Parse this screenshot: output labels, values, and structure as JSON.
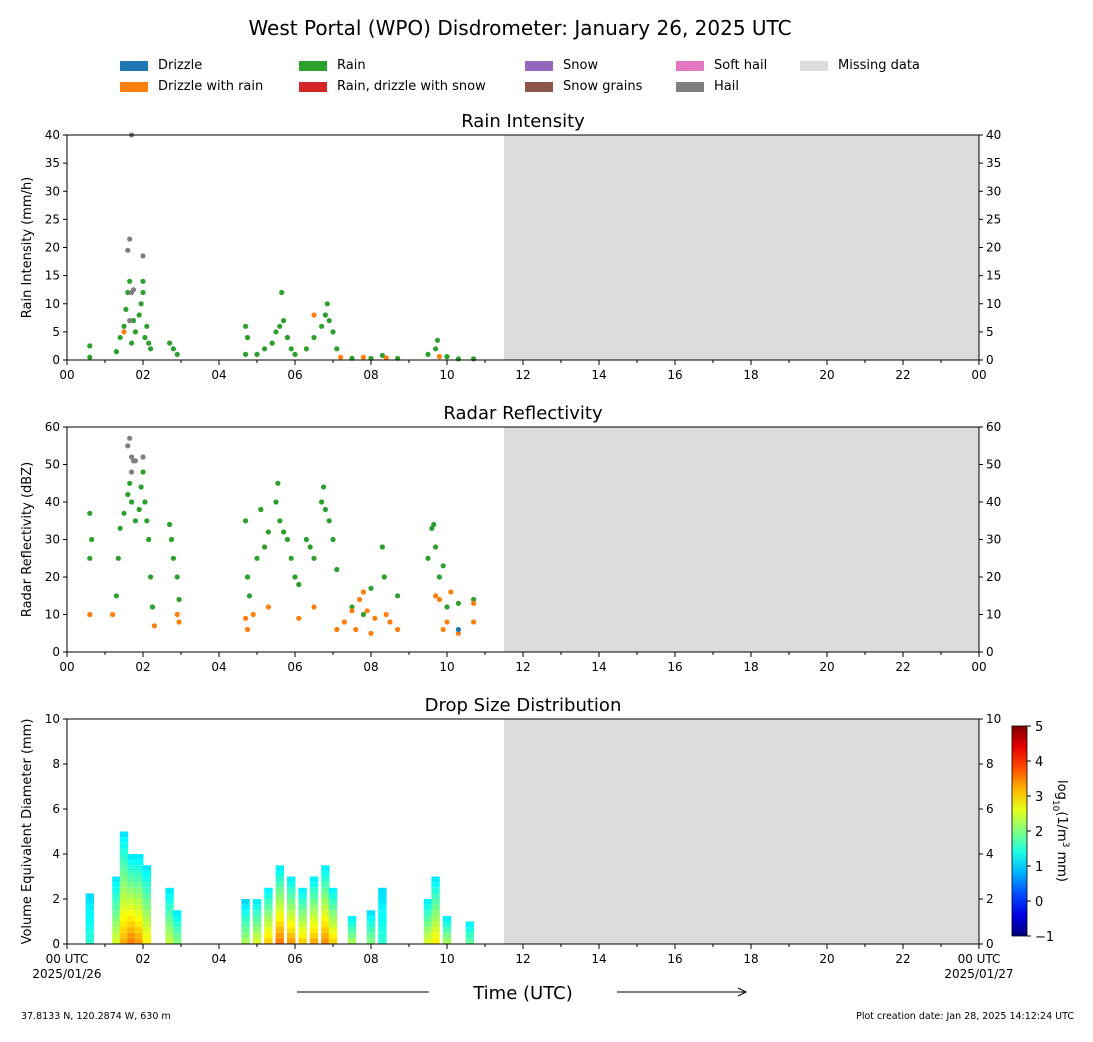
{
  "figure": {
    "title": "West Portal (WPO) Disdrometer: January 26, 2025 UTC",
    "footer_left": "37.8133 N, 120.2874 W, 630 m",
    "footer_right": "Plot creation date: Jan 28, 2025 14:12:24 UTC",
    "xlabel": "Time (UTC)",
    "start_label": [
      "00 UTC",
      "2025/01/26"
    ],
    "end_label": [
      "00 UTC",
      "2025/01/27"
    ]
  },
  "legend": [
    {
      "label": "Drizzle",
      "color": "#1f77b4"
    },
    {
      "label": "Drizzle with rain",
      "color": "#ff7f0e"
    },
    {
      "label": "Rain",
      "color": "#2ca02c"
    },
    {
      "label": "Rain, drizzle with snow",
      "color": "#d62728"
    },
    {
      "label": "Snow",
      "color": "#9467bd"
    },
    {
      "label": "Snow grains",
      "color": "#8c564b"
    },
    {
      "label": "Soft hail",
      "color": "#e377c2"
    },
    {
      "label": "Hail",
      "color": "#7f7f7f"
    },
    {
      "label": "Missing data",
      "color": "#dcdcdc"
    }
  ],
  "colorbar": {
    "label": "log10(1/m3 mm)",
    "ticks": [
      "5",
      "4",
      "3",
      "2",
      "1",
      "0",
      "−1"
    ],
    "range": [
      -1,
      5
    ]
  },
  "chart_data": [
    {
      "type": "scatter",
      "title": "Rain Intensity",
      "ylabel": "Rain Intensity (mm/h)",
      "xlim": [
        0,
        24
      ],
      "ylim": [
        0,
        40
      ],
      "xticks": [
        "00",
        "02",
        "04",
        "06",
        "08",
        "10",
        "12",
        "14",
        "16",
        "18",
        "20",
        "22",
        "00"
      ],
      "yticks": [
        0,
        5,
        10,
        15,
        20,
        25,
        30,
        35,
        40
      ],
      "missing_data_from_hour": 11.5,
      "series": [
        {
          "name": "Rain",
          "points": [
            [
              0.6,
              0.5
            ],
            [
              0.6,
              2.5
            ],
            [
              1.3,
              1.5
            ],
            [
              1.4,
              4
            ],
            [
              1.5,
              6
            ],
            [
              1.55,
              9
            ],
            [
              1.6,
              12
            ],
            [
              1.65,
              14
            ],
            [
              1.7,
              3
            ],
            [
              1.75,
              7
            ],
            [
              1.8,
              5
            ],
            [
              1.9,
              8
            ],
            [
              1.95,
              10
            ],
            [
              2.0,
              14
            ],
            [
              2.0,
              12
            ],
            [
              2.05,
              4
            ],
            [
              2.1,
              6
            ],
            [
              2.15,
              3
            ],
            [
              2.2,
              2
            ],
            [
              2.7,
              3
            ],
            [
              2.8,
              2
            ],
            [
              2.9,
              1
            ],
            [
              4.7,
              1
            ],
            [
              4.7,
              6
            ],
            [
              4.75,
              4
            ],
            [
              5.0,
              1
            ],
            [
              5.2,
              2
            ],
            [
              5.4,
              3
            ],
            [
              5.5,
              5
            ],
            [
              5.6,
              6
            ],
            [
              5.65,
              12
            ],
            [
              5.7,
              7
            ],
            [
              5.8,
              4
            ],
            [
              5.9,
              2
            ],
            [
              6.0,
              1
            ],
            [
              6.3,
              2
            ],
            [
              6.5,
              4
            ],
            [
              6.7,
              6
            ],
            [
              6.8,
              8
            ],
            [
              6.85,
              10
            ],
            [
              6.9,
              7
            ],
            [
              7.0,
              5
            ],
            [
              7.1,
              2
            ],
            [
              7.5,
              0.3
            ],
            [
              8.0,
              0.3
            ],
            [
              8.3,
              0.8
            ],
            [
              8.7,
              0.3
            ],
            [
              9.5,
              1
            ],
            [
              9.7,
              2
            ],
            [
              9.75,
              3.5
            ],
            [
              10.0,
              0.6
            ],
            [
              10.3,
              0.2
            ],
            [
              10.7,
              0.2
            ]
          ]
        },
        {
          "name": "Drizzle with rain",
          "points": [
            [
              1.5,
              5
            ],
            [
              6.5,
              8
            ],
            [
              7.2,
              0.5
            ],
            [
              7.8,
              0.5
            ],
            [
              8.4,
              0.4
            ],
            [
              9.8,
              0.6
            ]
          ]
        },
        {
          "name": "Hail",
          "points": [
            [
              1.6,
              19.5
            ],
            [
              1.65,
              21.5
            ],
            [
              1.7,
              12
            ],
            [
              1.75,
              12.5
            ],
            [
              2.0,
              18.5
            ],
            [
              1.65,
              7
            ],
            [
              1.7,
              40
            ]
          ]
        }
      ]
    },
    {
      "type": "scatter",
      "title": "Radar Reflectivity",
      "ylabel": "Radar Reflectivity (dBZ)",
      "xlim": [
        0,
        24
      ],
      "ylim": [
        0,
        60
      ],
      "xticks": [
        "00",
        "02",
        "04",
        "06",
        "08",
        "10",
        "12",
        "14",
        "16",
        "18",
        "20",
        "22",
        "00"
      ],
      "yticks": [
        0,
        10,
        20,
        30,
        40,
        50,
        60
      ],
      "missing_data_from_hour": 11.5,
      "series": [
        {
          "name": "Rain",
          "points": [
            [
              0.6,
              37
            ],
            [
              0.6,
              25
            ],
            [
              0.65,
              30
            ],
            [
              1.3,
              15
            ],
            [
              1.35,
              25
            ],
            [
              1.4,
              33
            ],
            [
              1.5,
              37
            ],
            [
              1.6,
              42
            ],
            [
              1.65,
              45
            ],
            [
              1.7,
              40
            ],
            [
              1.8,
              35
            ],
            [
              1.9,
              38
            ],
            [
              1.95,
              44
            ],
            [
              2.0,
              48
            ],
            [
              2.05,
              40
            ],
            [
              2.1,
              35
            ],
            [
              2.15,
              30
            ],
            [
              2.2,
              20
            ],
            [
              2.25,
              12
            ],
            [
              2.7,
              34
            ],
            [
              2.75,
              30
            ],
            [
              2.8,
              25
            ],
            [
              2.9,
              20
            ],
            [
              2.95,
              14
            ],
            [
              4.7,
              35
            ],
            [
              4.75,
              20
            ],
            [
              4.8,
              15
            ],
            [
              5.0,
              25
            ],
            [
              5.1,
              38
            ],
            [
              5.2,
              28
            ],
            [
              5.3,
              32
            ],
            [
              5.5,
              40
            ],
            [
              5.55,
              45
            ],
            [
              5.6,
              35
            ],
            [
              5.7,
              32
            ],
            [
              5.8,
              30
            ],
            [
              5.9,
              25
            ],
            [
              6.0,
              20
            ],
            [
              6.1,
              18
            ],
            [
              6.3,
              30
            ],
            [
              6.4,
              28
            ],
            [
              6.5,
              25
            ],
            [
              6.7,
              40
            ],
            [
              6.75,
              44
            ],
            [
              6.8,
              38
            ],
            [
              6.9,
              35
            ],
            [
              7.0,
              30
            ],
            [
              7.1,
              22
            ],
            [
              7.5,
              12
            ],
            [
              7.8,
              10
            ],
            [
              8.0,
              17
            ],
            [
              8.3,
              28
            ],
            [
              8.35,
              20
            ],
            [
              8.7,
              15
            ],
            [
              9.5,
              25
            ],
            [
              9.6,
              33
            ],
            [
              9.65,
              34
            ],
            [
              9.7,
              28
            ],
            [
              9.8,
              20
            ],
            [
              9.9,
              23
            ],
            [
              10.0,
              12
            ],
            [
              10.3,
              13
            ],
            [
              10.7,
              14
            ]
          ]
        },
        {
          "name": "Drizzle with rain",
          "points": [
            [
              0.6,
              10
            ],
            [
              1.2,
              10
            ],
            [
              2.3,
              7
            ],
            [
              2.9,
              10
            ],
            [
              2.95,
              8
            ],
            [
              4.7,
              9
            ],
            [
              4.75,
              6
            ],
            [
              4.9,
              10
            ],
            [
              5.3,
              12
            ],
            [
              6.1,
              9
            ],
            [
              6.5,
              12
            ],
            [
              7.1,
              6
            ],
            [
              7.3,
              8
            ],
            [
              7.5,
              11
            ],
            [
              7.6,
              6
            ],
            [
              7.7,
              14
            ],
            [
              7.8,
              16
            ],
            [
              7.9,
              11
            ],
            [
              8.0,
              5
            ],
            [
              8.1,
              9
            ],
            [
              8.4,
              10
            ],
            [
              8.5,
              8
            ],
            [
              8.7,
              6
            ],
            [
              9.7,
              15
            ],
            [
              9.8,
              14
            ],
            [
              9.9,
              6
            ],
            [
              10.0,
              8
            ],
            [
              10.1,
              16
            ],
            [
              10.3,
              5
            ],
            [
              10.7,
              8
            ],
            [
              10.7,
              13
            ]
          ]
        },
        {
          "name": "Drizzle",
          "points": [
            [
              10.3,
              6
            ]
          ]
        },
        {
          "name": "Hail",
          "points": [
            [
              1.6,
              55
            ],
            [
              1.65,
              57
            ],
            [
              1.7,
              52
            ],
            [
              1.75,
              51
            ],
            [
              1.8,
              51
            ],
            [
              2.0,
              52
            ],
            [
              1.7,
              48
            ]
          ]
        }
      ]
    },
    {
      "type": "heatmap",
      "title": "Drop Size Distribution",
      "ylabel": "Volume Equivalent Diameter (mm)",
      "xlim": [
        0,
        24
      ],
      "ylim": [
        0,
        10
      ],
      "xticks": [
        "00",
        "02",
        "04",
        "06",
        "08",
        "10",
        "12",
        "14",
        "16",
        "18",
        "20",
        "22",
        "00"
      ],
      "yticks": [
        0,
        2,
        4,
        6,
        8,
        10
      ],
      "missing_data_from_hour": 11.5,
      "segments": [
        [
          0.6,
          0.7
        ],
        [
          1.25,
          2.3
        ],
        [
          2.6,
          3.0
        ],
        [
          4.65,
          7.3
        ],
        [
          7.3,
          8.4
        ],
        [
          9.4,
          10.8
        ]
      ],
      "columns": [
        {
          "t": 0.6,
          "top": 2.2,
          "peak": 1.5
        },
        {
          "t": 1.3,
          "top": 3.0,
          "peak": 2.5
        },
        {
          "t": 1.5,
          "top": 5.0,
          "peak": 3.2
        },
        {
          "t": 1.7,
          "top": 4.0,
          "peak": 3.5
        },
        {
          "t": 1.9,
          "top": 4.0,
          "peak": 3.3
        },
        {
          "t": 2.1,
          "top": 3.5,
          "peak": 2.8
        },
        {
          "t": 2.7,
          "top": 2.5,
          "peak": 2.4
        },
        {
          "t": 2.9,
          "top": 1.5,
          "peak": 2.0
        },
        {
          "t": 4.7,
          "top": 1.8,
          "peak": 2.2
        },
        {
          "t": 5.0,
          "top": 2.0,
          "peak": 2.5
        },
        {
          "t": 5.3,
          "top": 2.5,
          "peak": 3.0
        },
        {
          "t": 5.6,
          "top": 3.5,
          "peak": 3.5
        },
        {
          "t": 5.9,
          "top": 3.0,
          "peak": 3.3
        },
        {
          "t": 6.2,
          "top": 2.5,
          "peak": 3.0
        },
        {
          "t": 6.5,
          "top": 3.0,
          "peak": 3.2
        },
        {
          "t": 6.8,
          "top": 3.5,
          "peak": 3.4
        },
        {
          "t": 7.0,
          "top": 2.5,
          "peak": 3.0
        },
        {
          "t": 7.5,
          "top": 1.2,
          "peak": 2.2
        },
        {
          "t": 8.0,
          "top": 1.4,
          "peak": 2.0
        },
        {
          "t": 8.3,
          "top": 2.5,
          "peak": 1.5
        },
        {
          "t": 9.5,
          "top": 2.0,
          "peak": 2.5
        },
        {
          "t": 9.7,
          "top": 3.0,
          "peak": 2.8
        },
        {
          "t": 10.0,
          "top": 1.2,
          "peak": 2.2
        },
        {
          "t": 10.6,
          "top": 1.0,
          "peak": 1.8
        }
      ]
    }
  ]
}
